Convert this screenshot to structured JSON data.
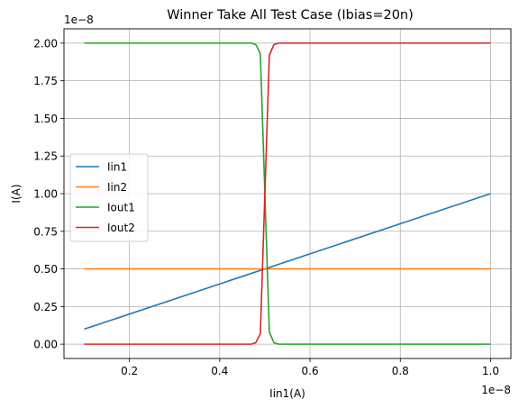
{
  "chart_data": {
    "type": "line",
    "title": "Winner Take All Test Case (Ibias=20n)",
    "xlabel": "Iin1(A)",
    "ylabel": "I(A)",
    "x_offset_label": "1e−8",
    "y_offset_label": "1e−8",
    "xlim": [
      0.055,
      1.045
    ],
    "ylim": [
      -0.095,
      2.095
    ],
    "xticks": [
      0.2,
      0.4,
      0.6,
      0.8,
      1.0
    ],
    "xtick_labels": [
      "0.2",
      "0.4",
      "0.6",
      "0.8",
      "1.0"
    ],
    "yticks": [
      0.0,
      0.25,
      0.5,
      0.75,
      1.0,
      1.25,
      1.5,
      1.75,
      2.0
    ],
    "ytick_labels": [
      "0.00",
      "0.25",
      "0.50",
      "0.75",
      "1.00",
      "1.25",
      "1.50",
      "1.75",
      "2.00"
    ],
    "grid": true,
    "legend_position": "center-left",
    "series": [
      {
        "name": "Iin1",
        "color": "#1f77b4",
        "x": [
          0.1,
          1.0
        ],
        "y": [
          0.1,
          1.0
        ]
      },
      {
        "name": "Iin2",
        "color": "#ff7f0e",
        "x": [
          0.1,
          1.0
        ],
        "y": [
          0.5,
          0.5
        ]
      },
      {
        "name": "Iout1",
        "color": "#2ca02c",
        "x": [
          0.1,
          0.47,
          0.48,
          0.49,
          0.5,
          0.51,
          0.52,
          0.53,
          1.0
        ],
        "y": [
          2.0,
          2.0,
          1.99,
          1.93,
          1.0,
          0.08,
          0.01,
          0.0,
          0.0
        ]
      },
      {
        "name": "Iout2",
        "color": "#d62728",
        "x": [
          0.1,
          0.47,
          0.48,
          0.49,
          0.5,
          0.51,
          0.52,
          0.53,
          1.0
        ],
        "y": [
          0.0,
          0.0,
          0.01,
          0.07,
          1.0,
          1.92,
          1.99,
          2.0,
          2.0
        ]
      }
    ]
  }
}
